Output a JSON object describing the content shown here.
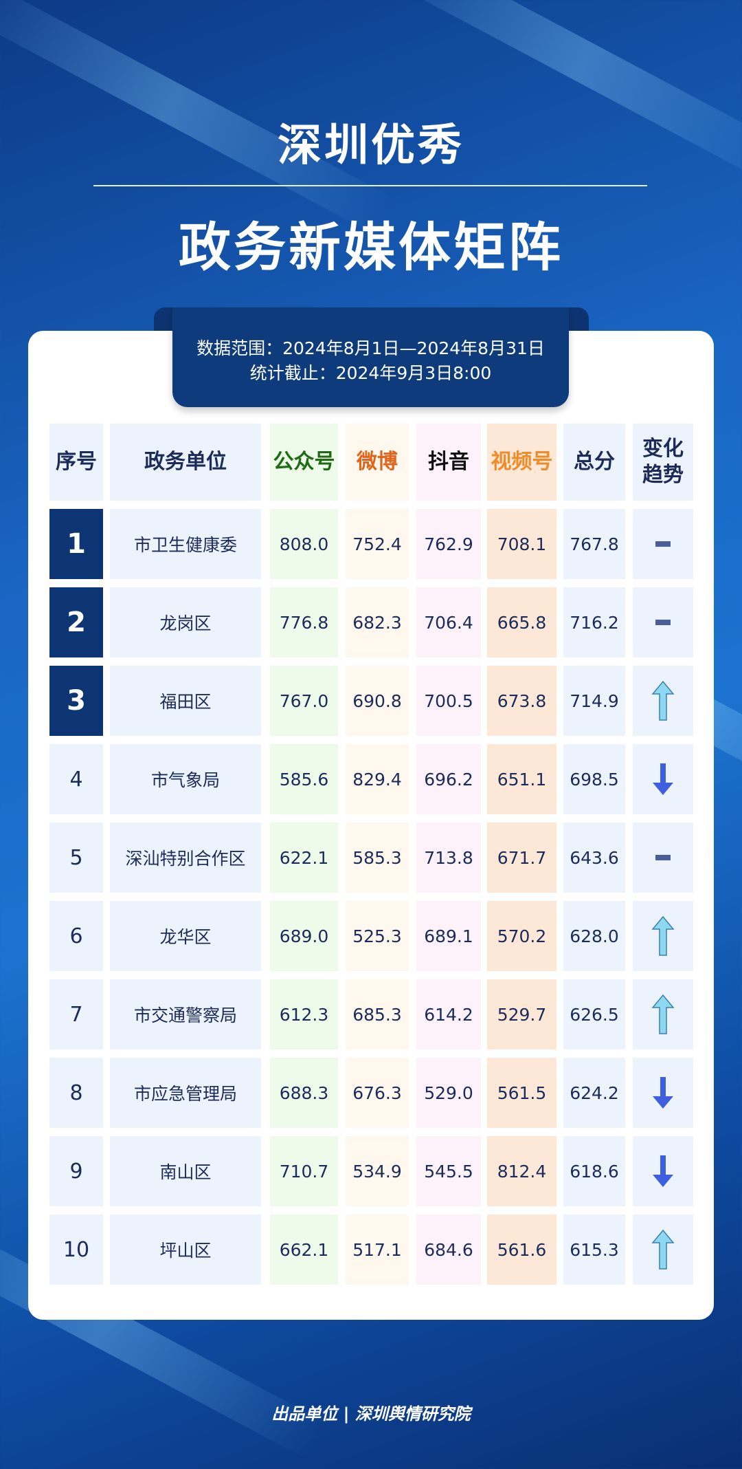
{
  "title_line1": "深圳优秀",
  "title_line2": "政务新媒体矩阵",
  "data_range": "数据范围：2024年8月1日—2024年8月31日",
  "cutoff": "统计截止：2024年9月3日8:00",
  "headers": [
    "序号",
    "政务单位",
    "公众号",
    "微博",
    "抖音",
    "视频号",
    "总分",
    "变化趋势"
  ],
  "header_colors": [
    "#1b2c5a",
    "#1b2c5a",
    "#1d6b12",
    "#e0641c",
    "#111111",
    "#f08c28",
    "#1b2c5a",
    "#1b2c5a"
  ],
  "rows": [
    {
      "rank": "1",
      "unit": "市卫生健康委",
      "gzh": "808.0",
      "weibo": "752.4",
      "douyin": "762.9",
      "sph": "708.1",
      "total": "767.8",
      "trend": "flat"
    },
    {
      "rank": "2",
      "unit": "龙岗区",
      "gzh": "776.8",
      "weibo": "682.3",
      "douyin": "706.4",
      "sph": "665.8",
      "total": "716.2",
      "trend": "flat"
    },
    {
      "rank": "3",
      "unit": "福田区",
      "gzh": "767.0",
      "weibo": "690.8",
      "douyin": "700.5",
      "sph": "673.8",
      "total": "714.9",
      "trend": "up"
    },
    {
      "rank": "4",
      "unit": "市气象局",
      "gzh": "585.6",
      "weibo": "829.4",
      "douyin": "696.2",
      "sph": "651.1",
      "total": "698.5",
      "trend": "down"
    },
    {
      "rank": "5",
      "unit": "深汕特别合作区",
      "gzh": "622.1",
      "weibo": "585.3",
      "douyin": "713.8",
      "sph": "671.7",
      "total": "643.6",
      "trend": "flat"
    },
    {
      "rank": "6",
      "unit": "龙华区",
      "gzh": "689.0",
      "weibo": "525.3",
      "douyin": "689.1",
      "sph": "570.2",
      "total": "628.0",
      "trend": "up"
    },
    {
      "rank": "7",
      "unit": "市交通警察局",
      "gzh": "612.3",
      "weibo": "685.3",
      "douyin": "614.2",
      "sph": "529.7",
      "total": "626.5",
      "trend": "up"
    },
    {
      "rank": "8",
      "unit": "市应急管理局",
      "gzh": "688.3",
      "weibo": "676.3",
      "douyin": "529.0",
      "sph": "561.5",
      "total": "624.2",
      "trend": "down"
    },
    {
      "rank": "9",
      "unit": "南山区",
      "gzh": "710.7",
      "weibo": "534.9",
      "douyin": "545.5",
      "sph": "812.4",
      "total": "618.6",
      "trend": "down"
    },
    {
      "rank": "10",
      "unit": "坪山区",
      "gzh": "662.1",
      "weibo": "517.1",
      "douyin": "684.6",
      "sph": "561.6",
      "total": "615.3",
      "trend": "up"
    }
  ],
  "footer": "出品单位 | 深圳舆情研究院"
}
